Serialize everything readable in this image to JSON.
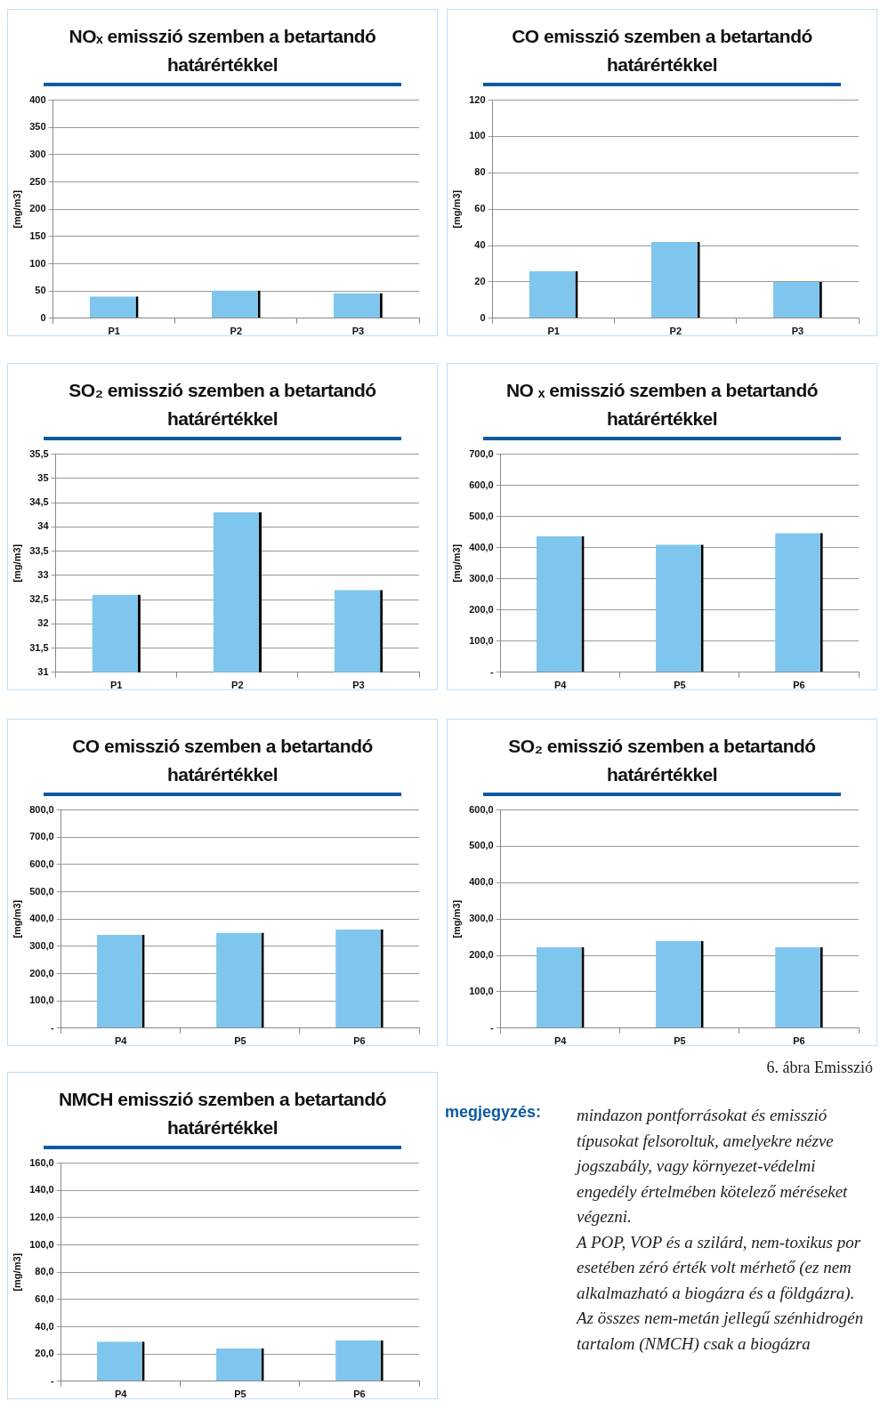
{
  "chart_data": [
    {
      "type": "bar",
      "title": "NOₓ emisszió szemben a betartandó határértékkel",
      "ylabel": "[mg/m3]",
      "categories": [
        "P1",
        "P2",
        "P3"
      ],
      "values": [
        40,
        51,
        46
      ],
      "color": "#7fc6ee",
      "ylim": [
        0,
        400
      ],
      "yticks": [
        0,
        50,
        100,
        150,
        200,
        250,
        300,
        350,
        400
      ],
      "grid": "y"
    },
    {
      "type": "bar",
      "title": "CO emisszió szemben a betartandó határértékkel",
      "ylabel": "[mg/m3]",
      "categories": [
        "P1",
        "P2",
        "P3"
      ],
      "values": [
        26,
        42,
        20
      ],
      "color": "#7fc6ee",
      "ylim": [
        0,
        120
      ],
      "yticks": [
        0,
        20,
        40,
        60,
        80,
        100,
        120
      ],
      "grid": "y"
    },
    {
      "type": "bar",
      "title": "SO₂ emisszió szemben a betartandó határértékkel",
      "ylabel": "[mg/m3]",
      "categories": [
        "P1",
        "P2",
        "P3"
      ],
      "values": [
        32.6,
        34.3,
        32.7
      ],
      "color": "#7fc6ee",
      "ylim": [
        31,
        35.5
      ],
      "yticks": [
        31,
        {
          "value": 31.5,
          "label": "31,5"
        },
        32,
        {
          "value": 32.5,
          "label": "32,5"
        },
        33,
        {
          "value": 33.5,
          "label": "33,5"
        },
        34,
        {
          "value": 34.5,
          "label": "34,5"
        },
        35,
        {
          "value": 35.5,
          "label": "35,5"
        }
      ],
      "grid": "y"
    },
    {
      "type": "bar",
      "title": "NO ₓ emisszió szemben a betartandó határértékkel",
      "ylabel": "[mg/m3]",
      "categories": [
        "P4",
        "P5",
        "P6"
      ],
      "values": [
        437,
        410,
        447
      ],
      "color": "#7fc6ee",
      "ylim": [
        0,
        700
      ],
      "yticks": [
        {
          "value": 0,
          "label": "-"
        },
        {
          "value": 100,
          "label": "100,0"
        },
        {
          "value": 200,
          "label": "200,0"
        },
        {
          "value": 300,
          "label": "300,0"
        },
        {
          "value": 400,
          "label": "400,0"
        },
        {
          "value": 500,
          "label": "500,0"
        },
        {
          "value": 600,
          "label": "600,0"
        },
        {
          "value": 700,
          "label": "700,0"
        }
      ],
      "grid": "y"
    },
    {
      "type": "bar",
      "title": "CO emisszió szemben a betartandó határértékkel",
      "ylabel": "[mg/m3]",
      "categories": [
        "P4",
        "P5",
        "P6"
      ],
      "values": [
        342,
        350,
        362
      ],
      "color": "#7fc6ee",
      "ylim": [
        0,
        800
      ],
      "yticks": [
        {
          "value": 0,
          "label": "-"
        },
        {
          "value": 100,
          "label": "100,0"
        },
        {
          "value": 200,
          "label": "200,0"
        },
        {
          "value": 300,
          "label": "300,0"
        },
        {
          "value": 400,
          "label": "400,0"
        },
        {
          "value": 500,
          "label": "500,0"
        },
        {
          "value": 600,
          "label": "600,0"
        },
        {
          "value": 700,
          "label": "700,0"
        },
        {
          "value": 800,
          "label": "800,0"
        }
      ],
      "grid": "y"
    },
    {
      "type": "bar",
      "title": "SO₂ emisszió szemben a betartandó határértékkel",
      "ylabel": "[mg/m3]",
      "categories": [
        "P4",
        "P5",
        "P6"
      ],
      "values": [
        223,
        240,
        223
      ],
      "color": "#7fc6ee",
      "ylim": [
        0,
        600
      ],
      "yticks": [
        {
          "value": 0,
          "label": "-"
        },
        {
          "value": 100,
          "label": "100,0"
        },
        {
          "value": 200,
          "label": "200,0"
        },
        {
          "value": 300,
          "label": "300,0"
        },
        {
          "value": 400,
          "label": "400,0"
        },
        {
          "value": 500,
          "label": "500,0"
        },
        {
          "value": 600,
          "label": "600,0"
        }
      ],
      "grid": "y"
    },
    {
      "type": "bar",
      "title": "NMCH emisszió szemben a betartandó határértékkel",
      "ylabel": "[mg/m3]",
      "categories": [
        "P4",
        "P5",
        "P6"
      ],
      "values": [
        29,
        24,
        30
      ],
      "color": "#7fc6ee",
      "ylim": [
        0,
        160
      ],
      "yticks": [
        {
          "value": 0,
          "label": "-"
        },
        {
          "value": 20,
          "label": "20,0"
        },
        {
          "value": 40,
          "label": "40,0"
        },
        {
          "value": 60,
          "label": "60,0"
        },
        {
          "value": 80,
          "label": "80,0"
        },
        {
          "value": 100,
          "label": "100,0"
        },
        {
          "value": 120,
          "label": "120,0"
        },
        {
          "value": 140,
          "label": "140,0"
        },
        {
          "value": 160,
          "label": "160,0"
        }
      ],
      "grid": "y"
    },
    {
      "type": "other",
      "title": "megjegyzés:",
      "annotations": [
        "6. ábra Emisszió",
        "mindazon pontforrásokat és emisszió típusokat felsoroltuk, amelyekre nézve jogszabály, vagy környezet-védelmi engedély értelmében kötelező méréseket végezni.",
        "A POP, VOP és a szilárd, nem-toxikus por esetében zéró érték volt mérhető (ez nem alkalmazható a biogázra és a földgázra).",
        "Az összes nem-metán jellegű szénhidrogén tartalom (NMCH) csak a biogázra"
      ]
    }
  ]
}
